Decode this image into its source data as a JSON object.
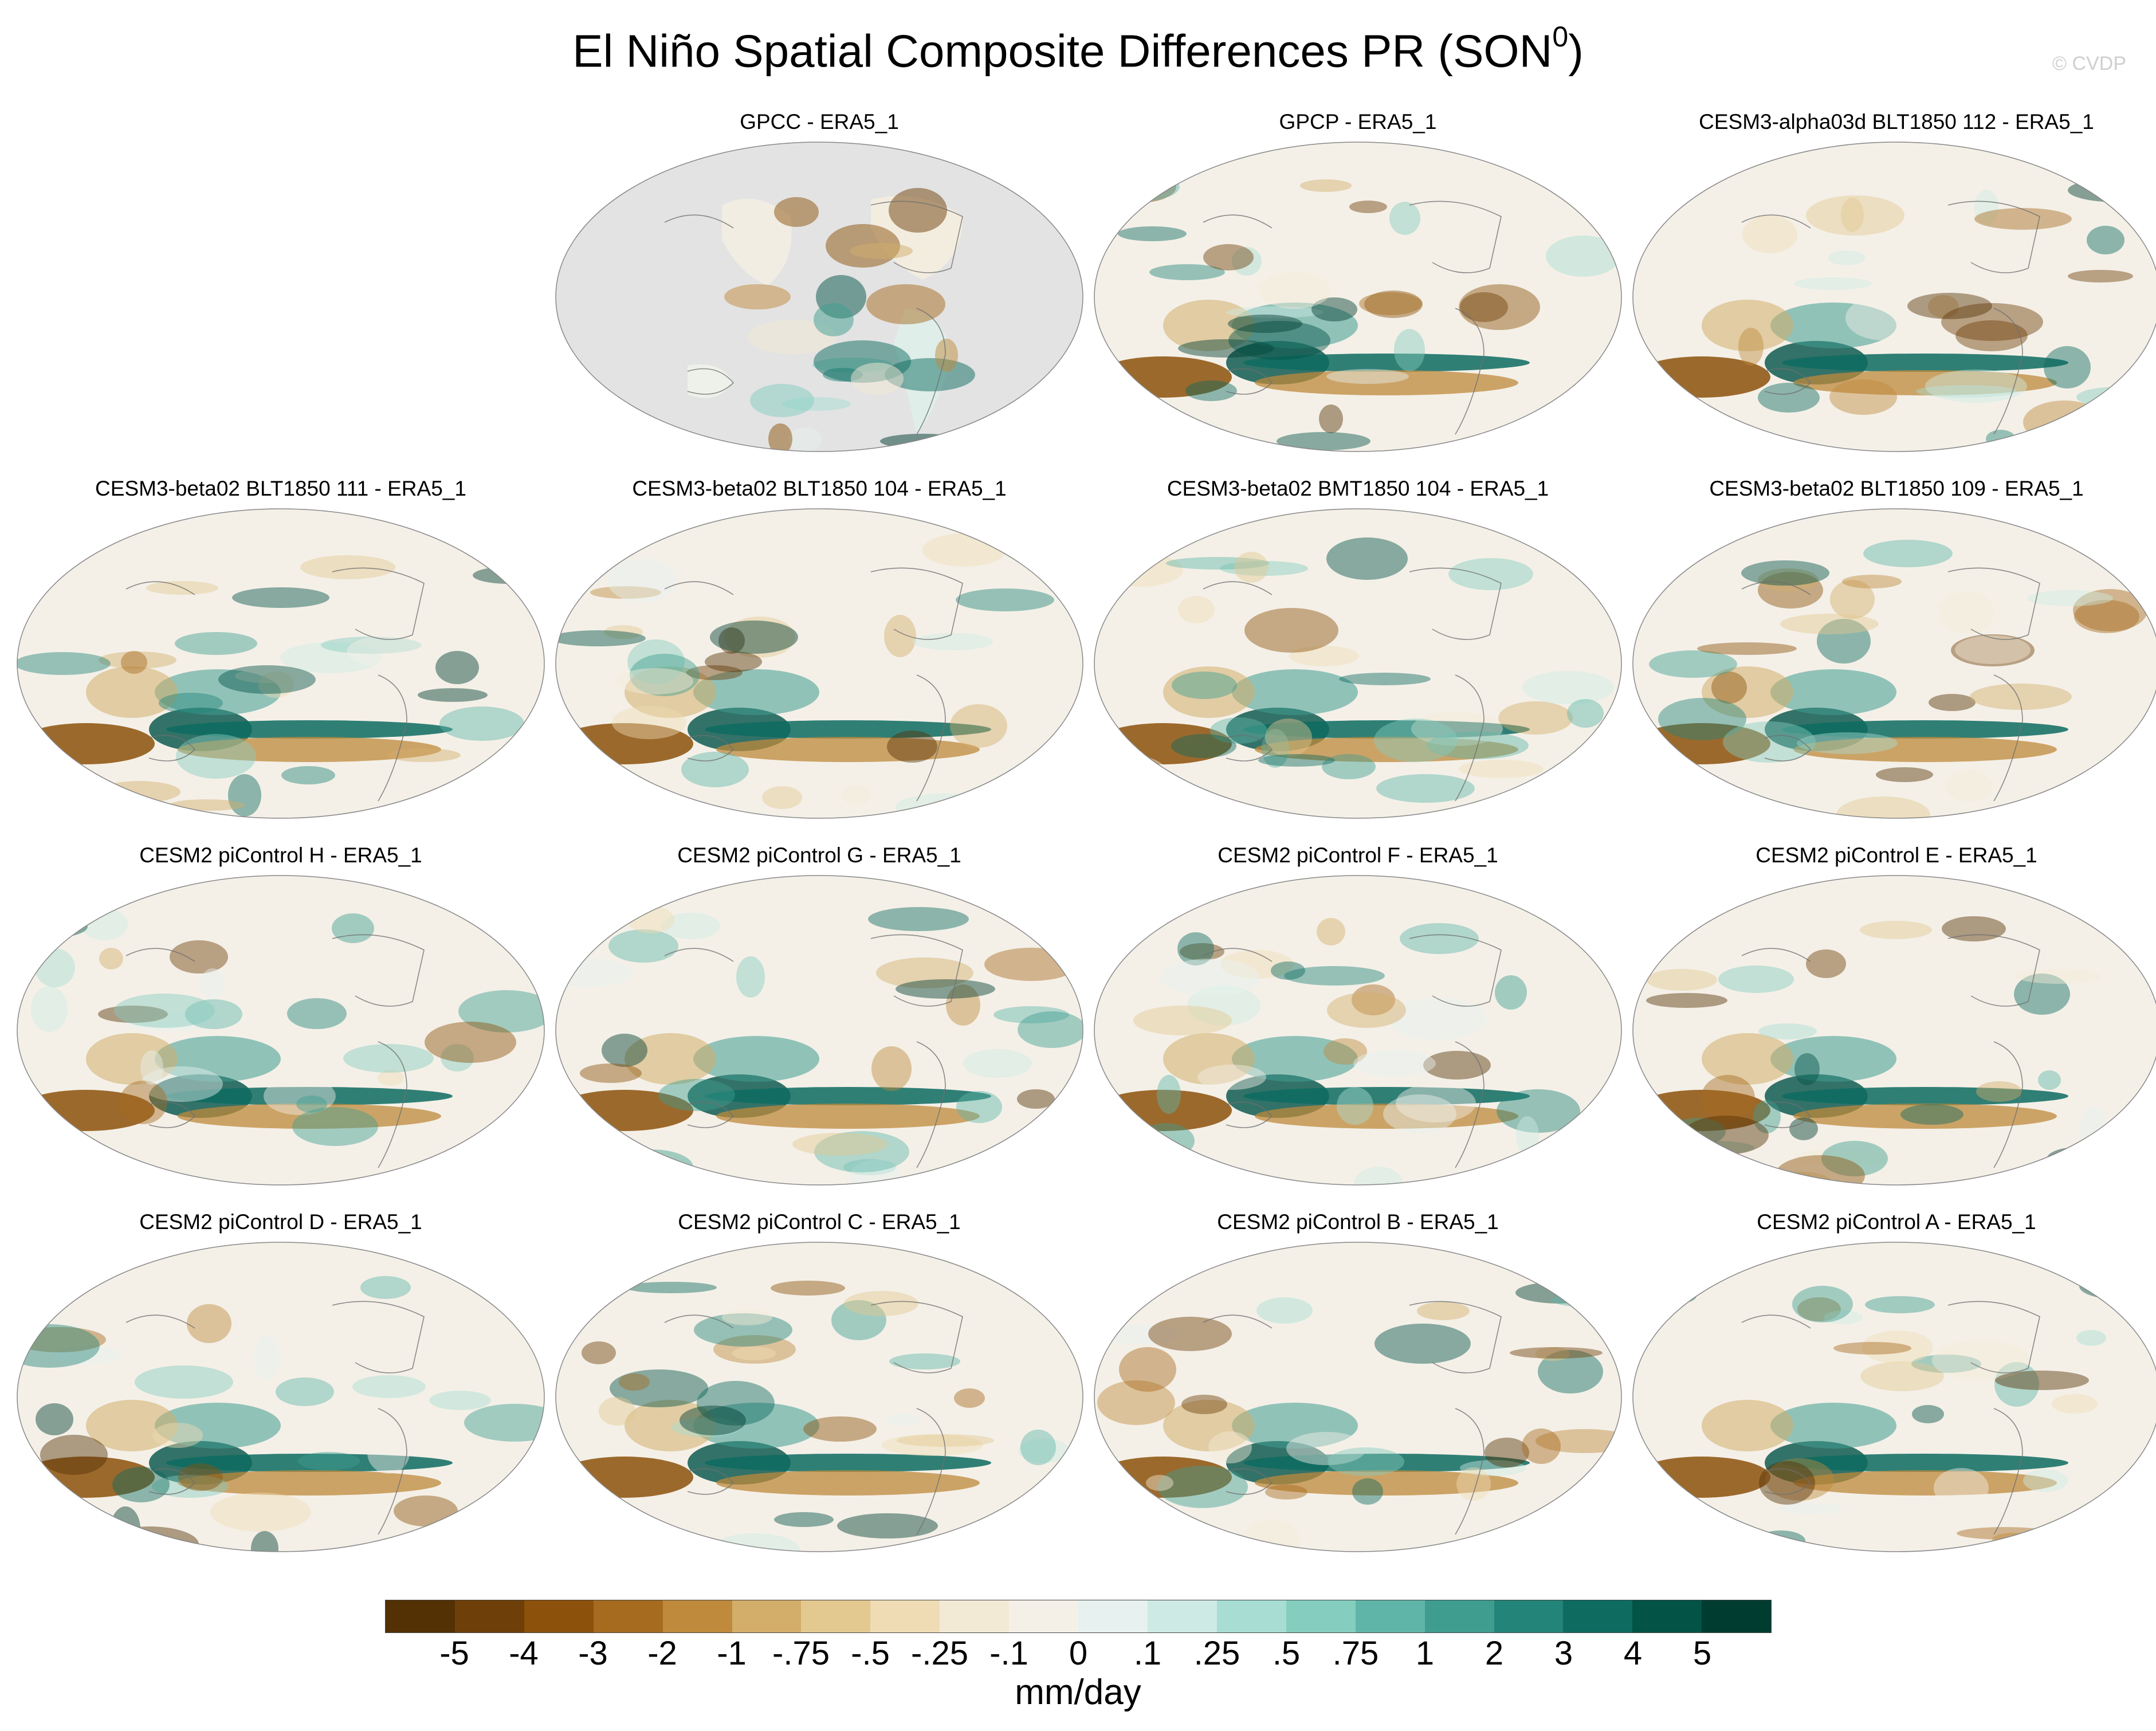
{
  "figure": {
    "title_main": "El Niño Spatial Composite Differences PR (SON",
    "title_sup": "0",
    "title_end": ")",
    "watermark": "© CVDP"
  },
  "panels": [
    {
      "title": "GPCC - ERA5_1",
      "land_only": true
    },
    {
      "title": "GPCP - ERA5_1"
    },
    {
      "title": "CESM3-alpha03d BLT1850 112 - ERA5_1"
    },
    {
      "title": "CESM3-beta02 BLT1850 111 - ERA5_1"
    },
    {
      "title": "CESM3-beta02 BLT1850 104 - ERA5_1"
    },
    {
      "title": "CESM3-beta02 BMT1850 104 - ERA5_1"
    },
    {
      "title": "CESM3-beta02 BLT1850 109 - ERA5_1"
    },
    {
      "title": "CESM2 piControl H - ERA5_1"
    },
    {
      "title": "CESM2 piControl G - ERA5_1"
    },
    {
      "title": "CESM2 piControl F - ERA5_1"
    },
    {
      "title": "CESM2 piControl E - ERA5_1"
    },
    {
      "title": "CESM2 piControl D - ERA5_1"
    },
    {
      "title": "CESM2 piControl C - ERA5_1"
    },
    {
      "title": "CESM2 piControl B - ERA5_1"
    },
    {
      "title": "CESM2 piControl A - ERA5_1"
    }
  ],
  "colorbar": {
    "colors": [
      "#543005",
      "#6e3f08",
      "#8c510a",
      "#a66b1f",
      "#bf8a3b",
      "#d2ae6a",
      "#e3c890",
      "#efdcb4",
      "#f3ead6",
      "#f4f0e8",
      "#e7f1ef",
      "#cdeae4",
      "#a8ddd3",
      "#84cdbf",
      "#5fb6a8",
      "#3f9d90",
      "#238479",
      "#0d6b60",
      "#035347",
      "#003c30"
    ],
    "tick_labels": [
      "-5",
      "-4",
      "-3",
      "-2",
      "-1",
      "-.75",
      "-.5",
      "-.25",
      "-.1",
      "0",
      ".1",
      ".25",
      ".5",
      ".75",
      "1",
      "2",
      "3",
      "4",
      "5"
    ],
    "units": "mm/day"
  }
}
